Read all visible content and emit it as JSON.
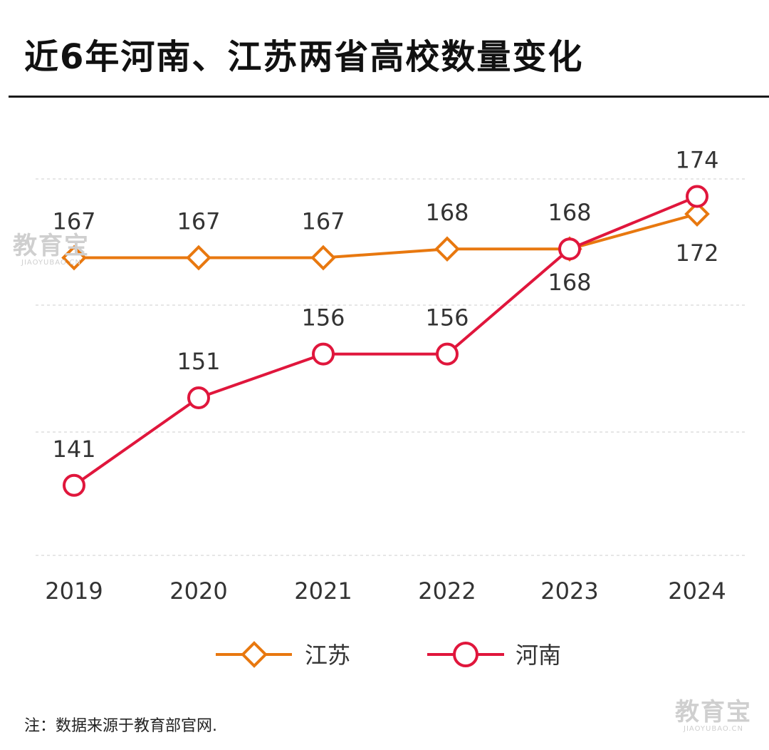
{
  "title": "近6年河南、江苏两省高校数量变化",
  "note": "注：数据来源于教育部官网.",
  "watermark": {
    "main": "教育宝",
    "sub": "JIAOYUBAO.CN"
  },
  "colors": {
    "jiangsu": "#E8780F",
    "henan": "#E0163C",
    "grid": "#dddddd",
    "text": "#333333"
  },
  "chart_data": {
    "type": "line",
    "categories": [
      "2019",
      "2020",
      "2021",
      "2022",
      "2023",
      "2024"
    ],
    "series": [
      {
        "name": "江苏",
        "values": [
          167,
          167,
          167,
          168,
          168,
          172
        ],
        "marker": "diamond",
        "labels": [
          "167",
          "167",
          "167",
          "168",
          "168",
          "172"
        ]
      },
      {
        "name": "河南",
        "values": [
          141,
          151,
          156,
          156,
          168,
          174
        ],
        "marker": "circle",
        "labels": [
          "141",
          "151",
          "156",
          "156",
          "168",
          "174"
        ]
      }
    ],
    "ylim": [
      131,
      176
    ],
    "grid": true,
    "legend": "bottom-center"
  }
}
